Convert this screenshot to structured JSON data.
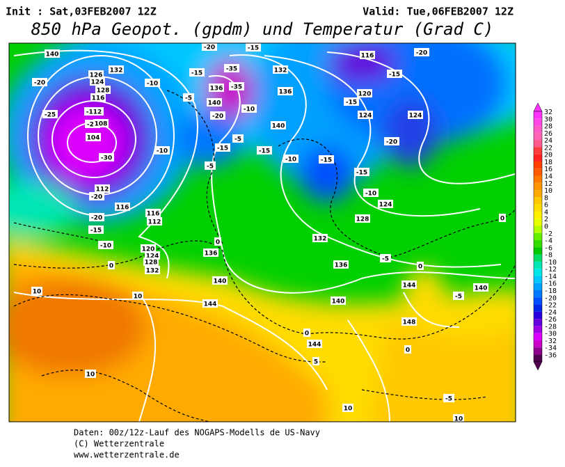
{
  "header": {
    "init": "Init : Sat,03FEB2007 12Z",
    "valid": "Valid: Tue,06FEB2007 12Z",
    "title": "850 hPa Geopot. (gpdm) und Temperatur (Grad C)"
  },
  "map": {
    "contour_labels": [
      "140",
      "-20",
      "-15",
      "116",
      "-20",
      "132",
      "126",
      "124",
      "-20",
      "-15",
      "-35",
      "-10",
      "128",
      "132",
      "-15",
      "136",
      "-35",
      "136",
      "120",
      "116",
      "-5",
      "140",
      "-10",
      "-15",
      "124",
      "124",
      "-25",
      "-112",
      "-20",
      "-20",
      "108",
      "140",
      "104",
      "-20",
      "-5",
      "-15",
      "-10",
      "-15",
      "-30",
      "-10",
      "-15",
      "-5",
      "-15",
      "112",
      "-20",
      "-10",
      "116",
      "124",
      "116",
      "-20",
      "112",
      "128",
      "-15",
      "0",
      "132",
      "-10",
      "0",
      "120",
      "136",
      "124",
      "128",
      "0",
      "-5",
      "0",
      "132",
      "136",
      "140",
      "144",
      "140",
      "10",
      "10",
      "-5",
      "144",
      "140",
      "148",
      "0",
      "144",
      "0",
      "5",
      "10",
      "10",
      "-5",
      "10"
    ]
  },
  "colorbar": {
    "ticks": [
      32,
      30,
      28,
      26,
      24,
      22,
      20,
      18,
      16,
      14,
      12,
      10,
      8,
      6,
      4,
      2,
      0,
      -2,
      -4,
      -6,
      -8,
      -10,
      -12,
      -14,
      -16,
      -18,
      -20,
      -22,
      -24,
      -26,
      -28,
      -30,
      -32,
      -34,
      -36
    ],
    "colors": [
      "#ff32ff",
      "#ff46e6",
      "#ff5ac8",
      "#ff64b4",
      "#ff5a8c",
      "#ff3c3c",
      "#ff2020",
      "#ff4000",
      "#ff5a00",
      "#ff7800",
      "#ff9600",
      "#ffaa00",
      "#ffc800",
      "#ffdc00",
      "#fff000",
      "#e6ff00",
      "#b4ff00",
      "#64f000",
      "#32dc00",
      "#00c800",
      "#00dc64",
      "#00e6b4",
      "#00e6e6",
      "#00c8ff",
      "#00a0ff",
      "#0078ff",
      "#0050ff",
      "#0028e6",
      "#2800dc",
      "#6400dc",
      "#a000e6",
      "#dc00ff",
      "#c800c8",
      "#8c008c",
      "#500050"
    ]
  },
  "footer": {
    "line1": "Daten: 00z/12z-Lauf des NOGAPS-Modells de US-Navy",
    "line2": "(C) Wetterzentrale",
    "line3": "www.wetterzentrale.de"
  }
}
